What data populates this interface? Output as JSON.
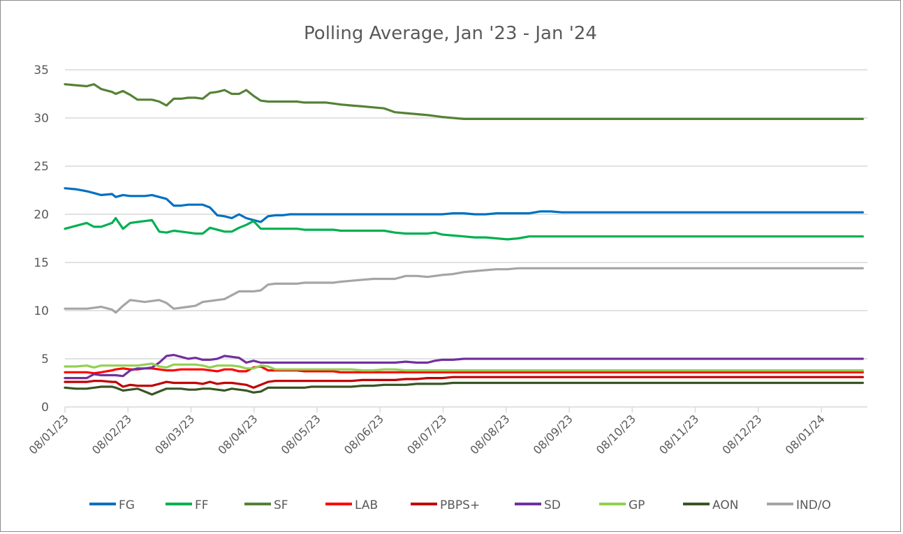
{
  "chart_data": {
    "type": "line",
    "title": "Polling Average, Jan '23 - Jan '24",
    "xlabel": "",
    "ylabel": "",
    "ylim": [
      0,
      35
    ],
    "yticks": [
      0,
      5,
      10,
      15,
      20,
      25,
      30,
      35
    ],
    "grid": true,
    "legend_position": "bottom",
    "x_tick_labels": [
      "08/01/23",
      "08/02/23",
      "08/03/23",
      "08/04/23",
      "08/05/23",
      "08/06/23",
      "08/07/23",
      "08/08/23",
      "08/09/23",
      "08/10/23",
      "08/11/23",
      "08/12/23",
      "08/01/24"
    ],
    "x": [
      0,
      0.75,
      1.5,
      2.0,
      2.5,
      3.25,
      3.5,
      4.0,
      4.5,
      5.0,
      5.5,
      6.0,
      6.5,
      7.0,
      7.5,
      8.0,
      8.5,
      9.0,
      9.5,
      10.0,
      10.5,
      11.0,
      11.5,
      12.0,
      12.5,
      13.0,
      13.5,
      14.0,
      14.5,
      15.0,
      15.5,
      16.0,
      16.5,
      17.0,
      17.5,
      18.0,
      18.5,
      19.0,
      19.75,
      20.5,
      21.25,
      22.0,
      22.75,
      23.5,
      24.25,
      25.0,
      25.5,
      26.0,
      26.75,
      27.5,
      28.25,
      29.0,
      29.75,
      30.5,
      31.25,
      32.0,
      32.75,
      33.5,
      34.25,
      35.0,
      35.5,
      36.0,
      37.0,
      38.0,
      39.0,
      40.0,
      41.0,
      42.0,
      43.0,
      44.0,
      45.0,
      46.0,
      47.0,
      48.0,
      49.0,
      50.0,
      51.0,
      52.0,
      53.0,
      54.0,
      55.0
    ],
    "x_unit": "weeks since 08/01/23",
    "series": [
      {
        "name": "FG",
        "color": "#0070C0",
        "values": [
          22.7,
          22.6,
          22.4,
          22.2,
          22.0,
          22.1,
          21.8,
          22.0,
          21.9,
          21.9,
          21.9,
          22.0,
          21.8,
          21.6,
          20.9,
          20.9,
          21.0,
          21.0,
          21.0,
          20.7,
          19.9,
          19.8,
          19.6,
          20.0,
          19.6,
          19.4,
          19.2,
          19.8,
          19.9,
          19.9,
          20.0,
          20.0,
          20.0,
          20.0,
          20.0,
          20.0,
          20.0,
          20.0,
          20.0,
          20.0,
          20.0,
          20.0,
          20.0,
          20.0,
          20.0,
          20.0,
          20.0,
          20.0,
          20.1,
          20.1,
          20.0,
          20.0,
          20.1,
          20.1,
          20.1,
          20.1,
          20.3,
          20.3,
          20.2,
          20.2,
          20.2,
          20.2,
          20.2,
          20.2,
          20.2,
          20.2,
          20.2,
          20.2,
          20.2,
          20.2,
          20.2,
          20.2,
          20.2,
          20.2,
          20.2,
          20.2,
          20.2,
          20.2,
          20.2,
          20.2,
          20.2
        ]
      },
      {
        "name": "FF",
        "color": "#00B050",
        "values": [
          18.5,
          18.8,
          19.1,
          18.7,
          18.7,
          19.1,
          19.6,
          18.5,
          19.1,
          19.2,
          19.3,
          19.4,
          18.2,
          18.1,
          18.3,
          18.2,
          18.1,
          18.0,
          18.0,
          18.6,
          18.4,
          18.2,
          18.2,
          18.6,
          18.9,
          19.3,
          18.5,
          18.5,
          18.5,
          18.5,
          18.5,
          18.5,
          18.4,
          18.4,
          18.4,
          18.4,
          18.4,
          18.3,
          18.3,
          18.3,
          18.3,
          18.3,
          18.1,
          18.0,
          18.0,
          18.0,
          18.1,
          17.9,
          17.8,
          17.7,
          17.6,
          17.6,
          17.5,
          17.4,
          17.5,
          17.7,
          17.7,
          17.7,
          17.7,
          17.7,
          17.7,
          17.7,
          17.7,
          17.7,
          17.7,
          17.7,
          17.7,
          17.7,
          17.7,
          17.7,
          17.7,
          17.7,
          17.7,
          17.7,
          17.7,
          17.7,
          17.7,
          17.7,
          17.7,
          17.7,
          17.7
        ]
      },
      {
        "name": "SF",
        "color": "#548235",
        "values": [
          33.5,
          33.4,
          33.3,
          33.5,
          33.0,
          32.7,
          32.5,
          32.8,
          32.4,
          31.9,
          31.9,
          31.9,
          31.7,
          31.3,
          32.0,
          32.0,
          32.1,
          32.1,
          32.0,
          32.6,
          32.7,
          32.9,
          32.5,
          32.5,
          32.9,
          32.3,
          31.8,
          31.7,
          31.7,
          31.7,
          31.7,
          31.7,
          31.6,
          31.6,
          31.6,
          31.6,
          31.5,
          31.4,
          31.3,
          31.2,
          31.1,
          31.0,
          30.6,
          30.5,
          30.4,
          30.3,
          30.2,
          30.1,
          30.0,
          29.9,
          29.9,
          29.9,
          29.9,
          29.9,
          29.9,
          29.9,
          29.9,
          29.9,
          29.9,
          29.9,
          29.9,
          29.9,
          29.9,
          29.9,
          29.9,
          29.9,
          29.9,
          29.9,
          29.9,
          29.9,
          29.9,
          29.9,
          29.9,
          29.9,
          29.9,
          29.9,
          29.9,
          29.9,
          29.9,
          29.9,
          29.9
        ]
      },
      {
        "name": "LAB",
        "color": "#FF0000",
        "values": [
          3.6,
          3.6,
          3.6,
          3.5,
          3.6,
          3.8,
          3.9,
          4.0,
          3.9,
          3.9,
          4.0,
          4.0,
          3.9,
          3.8,
          3.8,
          3.9,
          3.9,
          3.9,
          3.9,
          3.8,
          3.7,
          3.9,
          3.9,
          3.7,
          3.7,
          4.1,
          4.2,
          3.8,
          3.8,
          3.8,
          3.8,
          3.8,
          3.7,
          3.7,
          3.7,
          3.7,
          3.7,
          3.6,
          3.6,
          3.6,
          3.6,
          3.6,
          3.6,
          3.6,
          3.6,
          3.6,
          3.6,
          3.6,
          3.6,
          3.6,
          3.6,
          3.6,
          3.6,
          3.6,
          3.6,
          3.6,
          3.6,
          3.6,
          3.6,
          3.6,
          3.6,
          3.6,
          3.6,
          3.6,
          3.6,
          3.6,
          3.6,
          3.6,
          3.6,
          3.6,
          3.6,
          3.6,
          3.6,
          3.6,
          3.6,
          3.6,
          3.6,
          3.6,
          3.6,
          3.6,
          3.6
        ]
      },
      {
        "name": "PBPS+",
        "color": "#C00000",
        "values": [
          2.6,
          2.6,
          2.6,
          2.7,
          2.7,
          2.6,
          2.6,
          2.1,
          2.3,
          2.2,
          2.2,
          2.2,
          2.4,
          2.6,
          2.5,
          2.5,
          2.5,
          2.5,
          2.4,
          2.6,
          2.4,
          2.5,
          2.5,
          2.4,
          2.3,
          2.0,
          2.3,
          2.6,
          2.7,
          2.7,
          2.7,
          2.7,
          2.7,
          2.7,
          2.7,
          2.7,
          2.7,
          2.7,
          2.7,
          2.8,
          2.8,
          2.8,
          2.8,
          2.9,
          2.9,
          3.0,
          3.0,
          3.0,
          3.1,
          3.1,
          3.1,
          3.1,
          3.1,
          3.1,
          3.1,
          3.1,
          3.1,
          3.1,
          3.1,
          3.1,
          3.1,
          3.1,
          3.1,
          3.1,
          3.1,
          3.1,
          3.1,
          3.1,
          3.1,
          3.1,
          3.1,
          3.1,
          3.1,
          3.1,
          3.1,
          3.1,
          3.1,
          3.1,
          3.1,
          3.1,
          3.1
        ]
      },
      {
        "name": "SD",
        "color": "#7030A0",
        "values": [
          3.0,
          3.0,
          3.0,
          3.4,
          3.3,
          3.3,
          3.3,
          3.2,
          3.8,
          4.0,
          4.0,
          4.1,
          4.6,
          5.3,
          5.4,
          5.2,
          5.0,
          5.1,
          4.9,
          4.9,
          5.0,
          5.3,
          5.2,
          5.1,
          4.6,
          4.8,
          4.6,
          4.6,
          4.6,
          4.6,
          4.6,
          4.6,
          4.6,
          4.6,
          4.6,
          4.6,
          4.6,
          4.6,
          4.6,
          4.6,
          4.6,
          4.6,
          4.6,
          4.7,
          4.6,
          4.6,
          4.8,
          4.9,
          4.9,
          5.0,
          5.0,
          5.0,
          5.0,
          5.0,
          5.0,
          5.0,
          5.0,
          5.0,
          5.0,
          5.0,
          5.0,
          5.0,
          5.0,
          5.0,
          5.0,
          5.0,
          5.0,
          5.0,
          5.0,
          5.0,
          5.0,
          5.0,
          5.0,
          5.0,
          5.0,
          5.0,
          5.0,
          5.0,
          5.0,
          5.0,
          5.0
        ]
      },
      {
        "name": "GP",
        "color": "#92D050",
        "values": [
          4.2,
          4.2,
          4.3,
          4.1,
          4.3,
          4.3,
          4.3,
          4.3,
          4.3,
          4.3,
          4.4,
          4.5,
          4.2,
          4.1,
          4.4,
          4.4,
          4.4,
          4.4,
          4.3,
          4.1,
          4.3,
          4.3,
          4.3,
          4.2,
          4.0,
          4.0,
          4.3,
          4.2,
          3.9,
          3.9,
          3.9,
          3.9,
          3.9,
          3.9,
          3.9,
          3.9,
          3.9,
          3.9,
          3.9,
          3.8,
          3.8,
          3.9,
          3.9,
          3.8,
          3.8,
          3.8,
          3.8,
          3.8,
          3.8,
          3.8,
          3.8,
          3.8,
          3.8,
          3.8,
          3.8,
          3.8,
          3.8,
          3.8,
          3.8,
          3.8,
          3.8,
          3.8,
          3.8,
          3.8,
          3.8,
          3.8,
          3.8,
          3.8,
          3.8,
          3.8,
          3.8,
          3.8,
          3.8,
          3.8,
          3.8,
          3.8,
          3.8,
          3.8,
          3.8,
          3.8,
          3.8
        ]
      },
      {
        "name": "AON",
        "color": "#375623",
        "values": [
          2.0,
          1.9,
          1.9,
          2.0,
          2.1,
          2.1,
          2.0,
          1.7,
          1.8,
          1.9,
          1.6,
          1.3,
          1.6,
          1.9,
          1.9,
          1.9,
          1.8,
          1.8,
          1.9,
          1.9,
          1.8,
          1.7,
          1.9,
          1.8,
          1.7,
          1.5,
          1.6,
          2.0,
          2.0,
          2.0,
          2.0,
          2.0,
          2.0,
          2.1,
          2.1,
          2.1,
          2.1,
          2.1,
          2.1,
          2.2,
          2.2,
          2.3,
          2.3,
          2.3,
          2.4,
          2.4,
          2.4,
          2.4,
          2.5,
          2.5,
          2.5,
          2.5,
          2.5,
          2.5,
          2.5,
          2.5,
          2.5,
          2.5,
          2.5,
          2.5,
          2.5,
          2.5,
          2.5,
          2.5,
          2.5,
          2.5,
          2.5,
          2.5,
          2.5,
          2.5,
          2.5,
          2.5,
          2.5,
          2.5,
          2.5,
          2.5,
          2.5,
          2.5,
          2.5,
          2.5,
          2.5
        ]
      },
      {
        "name": "IND/O",
        "color": "#A5A5A5",
        "values": [
          10.2,
          10.2,
          10.2,
          10.3,
          10.4,
          10.1,
          9.8,
          10.5,
          11.1,
          11.0,
          10.9,
          11.0,
          11.1,
          10.8,
          10.2,
          10.3,
          10.4,
          10.5,
          10.9,
          11.0,
          11.1,
          11.2,
          11.6,
          12.0,
          12.0,
          12.0,
          12.1,
          12.7,
          12.8,
          12.8,
          12.8,
          12.8,
          12.9,
          12.9,
          12.9,
          12.9,
          12.9,
          13.0,
          13.1,
          13.2,
          13.3,
          13.3,
          13.3,
          13.6,
          13.6,
          13.5,
          13.6,
          13.7,
          13.8,
          14.0,
          14.1,
          14.2,
          14.3,
          14.3,
          14.4,
          14.4,
          14.4,
          14.4,
          14.4,
          14.4,
          14.4,
          14.4,
          14.4,
          14.4,
          14.4,
          14.4,
          14.4,
          14.4,
          14.4,
          14.4,
          14.4,
          14.4,
          14.4,
          14.4,
          14.4,
          14.4,
          14.4,
          14.4,
          14.4,
          14.4,
          14.4
        ]
      }
    ]
  }
}
